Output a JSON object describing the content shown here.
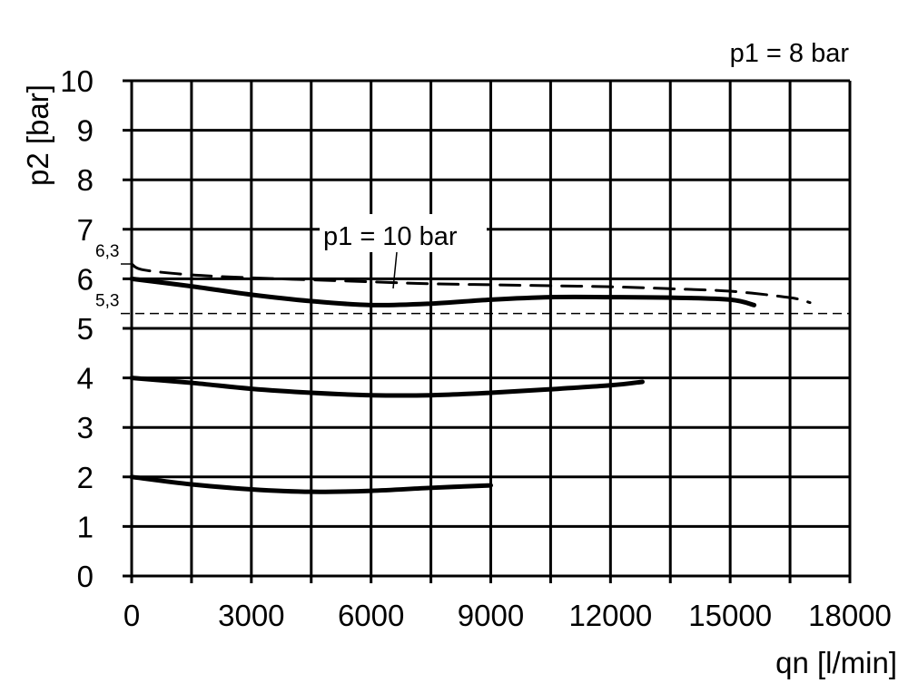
{
  "chart_data": {
    "type": "line",
    "title": "",
    "corner_label": "p1 = 8 bar",
    "xlabel": "qn [l/min]",
    "ylabel": "p2 [bar]",
    "xlim": [
      0,
      18000
    ],
    "ylim": [
      0,
      10
    ],
    "x_ticks": [
      0,
      3000,
      6000,
      9000,
      12000,
      15000,
      18000
    ],
    "x_tick_labels": [
      "0",
      "3000",
      "6000",
      "9000",
      "12000",
      "15000",
      "18000"
    ],
    "y_ticks": [
      0,
      1,
      2,
      3,
      4,
      5,
      6,
      7,
      8,
      9,
      10
    ],
    "y_tick_labels": [
      "0",
      "1",
      "2",
      "3",
      "4",
      "5",
      "6",
      "7",
      "8",
      "9",
      "10"
    ],
    "x_grid_step": 1500,
    "grid": true,
    "reference_lines": [
      {
        "y": 6.3,
        "label": "6,3"
      },
      {
        "y": 5.3,
        "label": "5,3"
      }
    ],
    "annotation": {
      "text": "p1 = 10 bar",
      "points_to_x": 6500
    },
    "series": [
      {
        "style": "solid",
        "x": [
          0,
          1500,
          3000,
          4500,
          6000,
          7500,
          9000,
          10500,
          12000,
          13500,
          15000,
          15600
        ],
        "y": [
          6.0,
          5.85,
          5.68,
          5.55,
          5.47,
          5.5,
          5.58,
          5.63,
          5.63,
          5.62,
          5.58,
          5.47
        ]
      },
      {
        "style": "dashed",
        "name": "p1 = 10 bar",
        "x": [
          0,
          300,
          1500,
          3000,
          4500,
          6000,
          7500,
          9000,
          10500,
          12000,
          13500,
          15000,
          16500,
          17000
        ],
        "y": [
          6.3,
          6.18,
          6.08,
          6.02,
          5.98,
          5.94,
          5.9,
          5.88,
          5.86,
          5.84,
          5.8,
          5.75,
          5.62,
          5.52
        ]
      },
      {
        "style": "solid",
        "x": [
          0,
          1500,
          3000,
          4500,
          6000,
          7500,
          9000,
          10500,
          12000,
          12800
        ],
        "y": [
          4.0,
          3.9,
          3.78,
          3.7,
          3.65,
          3.65,
          3.7,
          3.77,
          3.85,
          3.92
        ]
      },
      {
        "style": "solid",
        "x": [
          0,
          1500,
          3000,
          4500,
          6000,
          7500,
          9000
        ],
        "y": [
          2.0,
          1.85,
          1.75,
          1.7,
          1.72,
          1.78,
          1.83
        ]
      }
    ]
  }
}
